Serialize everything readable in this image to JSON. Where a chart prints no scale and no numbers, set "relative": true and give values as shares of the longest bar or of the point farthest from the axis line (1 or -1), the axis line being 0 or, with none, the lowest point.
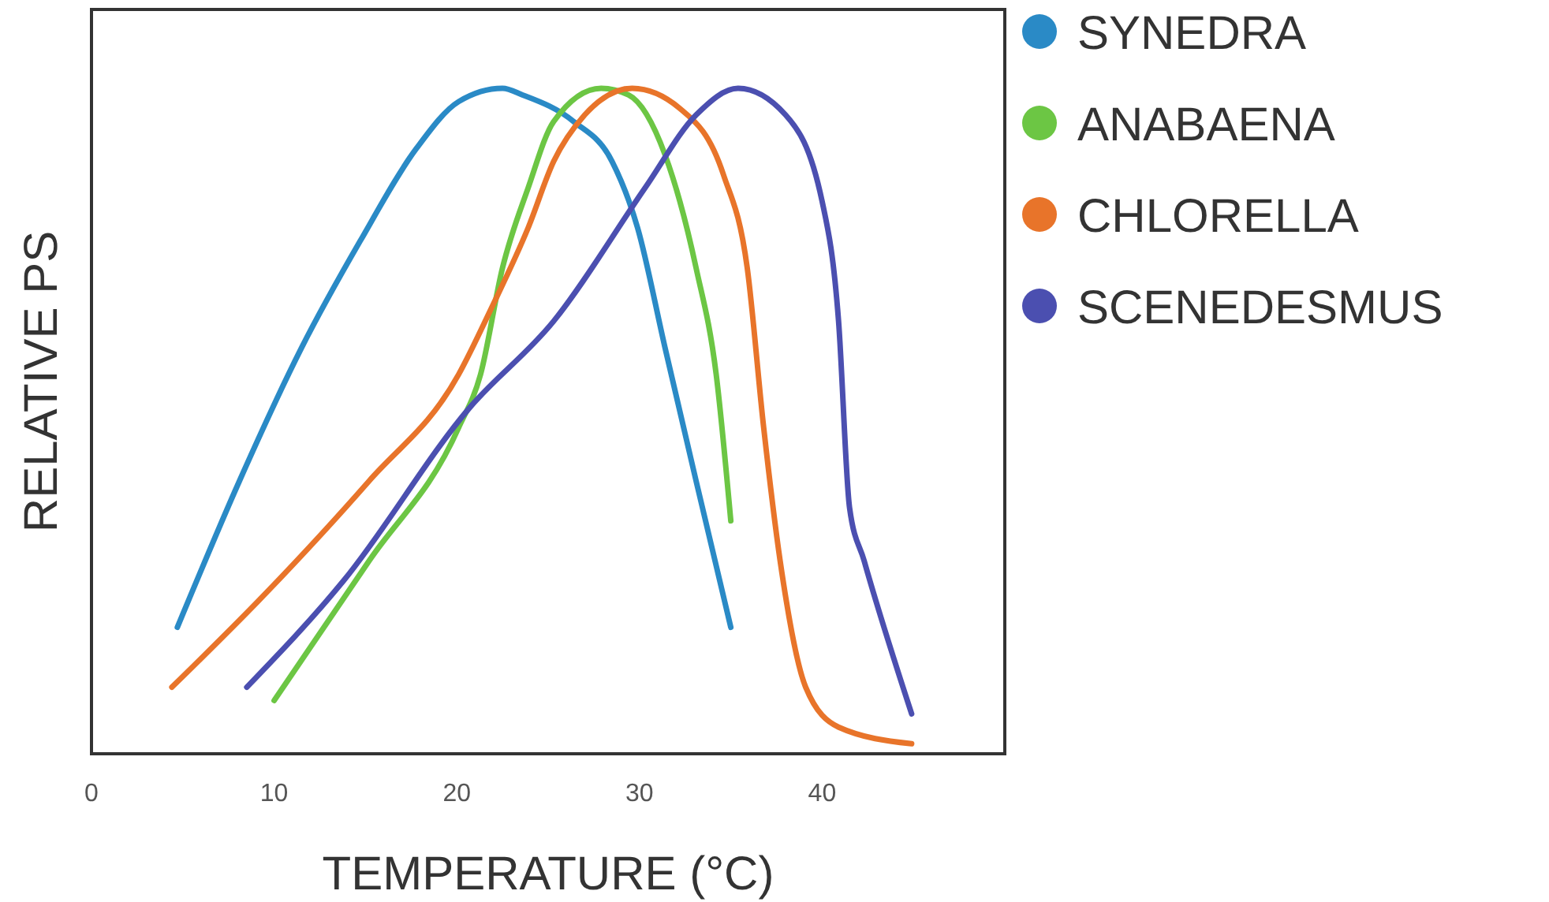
{
  "chart_data": {
    "type": "line",
    "xlabel": "TEMPERATURE (°C)",
    "ylabel": "RELATIVE PS",
    "relative": true,
    "xlim": [
      0,
      50
    ],
    "xticks": [
      0,
      10,
      20,
      30,
      40
    ],
    "legend": "right",
    "marker": "none",
    "line_style": "solid",
    "grid": false,
    "series": [
      {
        "name": "SYNEDRA",
        "color": "#2a8ac6",
        "x": [
          4.7,
          8.1,
          11.5,
          14.7,
          17.8,
          20.1,
          22.5,
          23.6,
          26.4,
          28.5,
          29.9,
          31.4,
          33.1,
          35.0
        ],
        "values": [
          0.19,
          0.41,
          0.61,
          0.77,
          0.91,
          0.98,
          1.0,
          0.99,
          0.95,
          0.89,
          0.79,
          0.61,
          0.41,
          0.19
        ]
      },
      {
        "name": "ANABAENA",
        "color": "#6cc644",
        "x": [
          10.0,
          15.2,
          20.1,
          21.3,
          22.5,
          23.9,
          25.3,
          27.9,
          29.4,
          31.4,
          33.1,
          34.2,
          35.0
        ],
        "values": [
          0.08,
          0.29,
          0.49,
          0.57,
          0.73,
          0.85,
          0.95,
          1.0,
          0.99,
          0.9,
          0.73,
          0.57,
          0.35
        ]
      },
      {
        "name": "CHLORELLA",
        "color": "#e8742a",
        "x": [
          4.4,
          9.5,
          15.2,
          20.1,
          21.9,
          23.9,
          25.3,
          27.0,
          29.6,
          32.2,
          34.6,
          35.9,
          36.8,
          37.7,
          39.1,
          40.9,
          44.9
        ],
        "values": [
          0.1,
          0.24,
          0.41,
          0.57,
          0.67,
          0.79,
          0.89,
          0.96,
          1.0,
          0.97,
          0.87,
          0.73,
          0.49,
          0.29,
          0.1,
          0.04,
          0.015
        ]
      },
      {
        "name": "SCENEDESMUS",
        "color": "#4b4fb0",
        "x": [
          8.5,
          13.8,
          20.7,
          25.3,
          30.3,
          33.1,
          35.4,
          38.0,
          40.0,
          40.9,
          41.5,
          42.3,
          44.9
        ],
        "values": [
          0.1,
          0.26,
          0.52,
          0.65,
          0.85,
          0.96,
          1.0,
          0.96,
          0.83,
          0.65,
          0.37,
          0.29,
          0.06
        ]
      }
    ]
  }
}
